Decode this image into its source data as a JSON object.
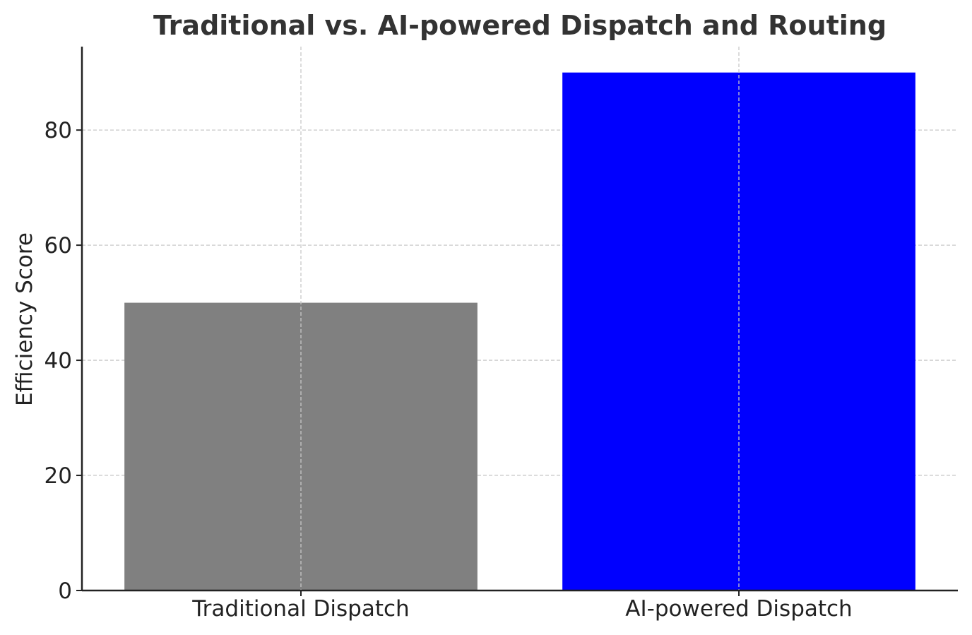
{
  "chart_data": {
    "type": "bar",
    "title": "Traditional vs. AI-powered Dispatch and Routing",
    "xlabel": "",
    "ylabel": "Efficiency Score",
    "categories": [
      "Traditional Dispatch",
      "AI-powered Dispatch"
    ],
    "values": [
      50,
      90
    ],
    "colors": [
      "#808080",
      "#0000ff"
    ],
    "ylim": [
      0,
      94.5
    ],
    "yticks": [
      0,
      20,
      40,
      60,
      80
    ],
    "grid": true,
    "grid_style": "dashed",
    "grid_color": "#c8c8c8",
    "axis_color": "#222222"
  }
}
